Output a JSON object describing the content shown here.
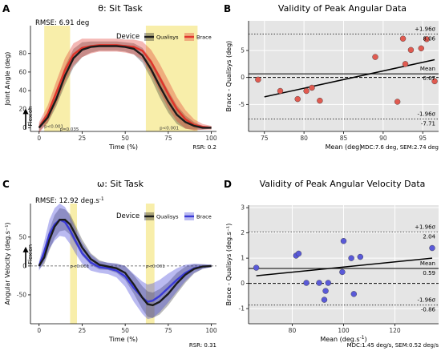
{
  "colors": {
    "qualisys": "#1a1a1a",
    "brace_red": "#e0342b",
    "brace_blue": "#3a3ad6",
    "highlight": "#f8eeaa",
    "panel_grey": "#e5e5e5",
    "point_red": "#e05a50",
    "point_blue": "#5a5ad8"
  },
  "chart_data": [
    {
      "type": "line",
      "panel_label": "A",
      "title": "θ: Sit Task",
      "annotation": "RMSE: 6.91 deg",
      "xlabel": "Time (%)",
      "ylabel": "Joint Angle (deg)",
      "arrow_label": "Flexion",
      "legend_title": "Device",
      "legend_position": "top-right",
      "footer": "RSR: 0.2",
      "xlim": [
        -5,
        103
      ],
      "ylim": [
        -4,
        110
      ],
      "xticks": [
        0,
        25,
        50,
        75,
        100
      ],
      "yticks": [
        0,
        20,
        40,
        60,
        80
      ],
      "grid": false,
      "highlight_regions": [
        [
          3,
          18
        ],
        [
          62,
          92
        ]
      ],
      "p_labels": [
        {
          "text": "p<0.001",
          "x": 3,
          "y": 0
        },
        {
          "text": "p=0.035",
          "x": 12,
          "y": -3
        },
        {
          "text": "p<0.001",
          "x": 70,
          "y": -2
        }
      ],
      "series": [
        {
          "name": "Qualisys",
          "x": [
            0,
            5,
            10,
            15,
            20,
            25,
            30,
            35,
            40,
            45,
            50,
            55,
            60,
            65,
            70,
            75,
            80,
            85,
            90,
            95,
            100
          ],
          "y": [
            0,
            11,
            31,
            56,
            75,
            84,
            87,
            88,
            88,
            88,
            87,
            85,
            78,
            63,
            45,
            28,
            14,
            6,
            2,
            0,
            0
          ],
          "band": [
            4,
            6,
            8,
            10,
            10,
            8,
            6,
            5,
            5,
            5,
            5,
            6,
            8,
            10,
            12,
            12,
            10,
            7,
            4,
            2,
            1
          ]
        },
        {
          "name": "Brace",
          "x": [
            0,
            5,
            10,
            15,
            20,
            25,
            30,
            35,
            40,
            45,
            50,
            55,
            60,
            65,
            70,
            75,
            80,
            85,
            90,
            95,
            100
          ],
          "y": [
            0,
            15,
            38,
            62,
            79,
            86,
            88,
            89,
            89,
            89,
            88,
            87,
            83,
            71,
            54,
            36,
            20,
            9,
            3,
            1,
            0
          ],
          "band": [
            6,
            9,
            12,
            13,
            12,
            10,
            8,
            7,
            7,
            7,
            7,
            8,
            10,
            13,
            15,
            15,
            13,
            10,
            6,
            3,
            2
          ]
        }
      ]
    },
    {
      "type": "scatter",
      "panel_label": "B",
      "title": "Validity of Peak Angular Data",
      "xlabel": "Mean (deg)",
      "ylabel": "Brace - Qualisys (deg)",
      "footer": "MDC:7.6 deg, SEM:2.74 deg",
      "xlim": [
        73,
        97
      ],
      "ylim": [
        -10,
        10.5
      ],
      "xticks": [
        75,
        80,
        85,
        90,
        95
      ],
      "yticks": [
        -5,
        0,
        5
      ],
      "grid": true,
      "mean": 0.67,
      "mean_label": "Mean",
      "mean_value_label": "0.67",
      "upper_loa": 8.06,
      "upper_loa_label": "+1.96σ",
      "upper_loa_value_label": "8.06",
      "lower_loa": -7.71,
      "lower_loa_label": "-1.96σ",
      "lower_loa_value_label": "-7.71",
      "regression": [
        [
          75,
          -3.6
        ],
        [
          96.5,
          3.3
        ]
      ],
      "points": [
        [
          74.2,
          -0.4
        ],
        [
          77,
          -2.5
        ],
        [
          79.2,
          -4.0
        ],
        [
          80.3,
          -2.5
        ],
        [
          81,
          -1.9
        ],
        [
          82,
          -4.3
        ],
        [
          89,
          3.8
        ],
        [
          91.8,
          -4.5
        ],
        [
          92.5,
          7.2
        ],
        [
          93.5,
          5.1
        ],
        [
          94.8,
          5.4
        ],
        [
          95.5,
          7.1
        ],
        [
          96.5,
          -0.7
        ],
        [
          92.8,
          2.5
        ]
      ]
    },
    {
      "type": "line",
      "panel_label": "C",
      "title": "ω: Sit Task",
      "annotation": "RMSE: 12.92 deg.s",
      "annotation_sup": "-1",
      "xlabel": "Time (%)",
      "ylabel": "Angular Velocity (deg.s⁻¹)",
      "arrow_label": "Flexion",
      "legend_title": "Device",
      "legend_position": "top-right",
      "footer": "RSR: 0.31",
      "xlim": [
        -5,
        103
      ],
      "ylim": [
        -100,
        108
      ],
      "xticks": [
        0,
        25,
        50,
        75,
        100
      ],
      "yticks": [
        -50,
        0,
        50
      ],
      "grid": false,
      "zero_line": true,
      "highlight_regions": [
        [
          18,
          22
        ],
        [
          62,
          67
        ]
      ],
      "p_labels": [
        {
          "text": "p<0.001",
          "x": 18,
          "y": -3
        },
        {
          "text": "p<0.001",
          "x": 62,
          "y": -3
        }
      ],
      "series": [
        {
          "name": "Qualisys",
          "x": [
            0,
            3,
            6,
            9,
            12,
            15,
            18,
            21,
            25,
            30,
            35,
            40,
            45,
            50,
            55,
            60,
            63,
            66,
            70,
            75,
            80,
            85,
            90,
            95,
            100
          ],
          "y": [
            0,
            15,
            45,
            68,
            80,
            80,
            72,
            55,
            32,
            12,
            2,
            -1,
            -4,
            -12,
            -32,
            -55,
            -66,
            -68,
            -62,
            -48,
            -30,
            -15,
            -5,
            -1,
            0
          ],
          "band": [
            5,
            12,
            18,
            20,
            20,
            18,
            18,
            16,
            14,
            10,
            8,
            6,
            8,
            12,
            16,
            20,
            22,
            22,
            22,
            20,
            18,
            14,
            8,
            4,
            2
          ]
        },
        {
          "name": "Brace",
          "x": [
            0,
            3,
            6,
            9,
            12,
            15,
            18,
            21,
            25,
            30,
            35,
            40,
            45,
            50,
            55,
            60,
            63,
            66,
            70,
            75,
            80,
            85,
            90,
            95,
            100
          ],
          "y": [
            0,
            25,
            55,
            72,
            80,
            76,
            62,
            44,
            22,
            6,
            -2,
            -4,
            -8,
            -18,
            -38,
            -55,
            -62,
            -60,
            -52,
            -38,
            -24,
            -12,
            -4,
            -1,
            0
          ],
          "band": [
            8,
            18,
            25,
            28,
            28,
            26,
            24,
            22,
            18,
            14,
            10,
            10,
            12,
            18,
            24,
            28,
            30,
            30,
            28,
            25,
            20,
            14,
            8,
            4,
            2
          ]
        }
      ]
    },
    {
      "type": "scatter",
      "panel_label": "D",
      "title": "Validity of Peak Angular Velocity Data",
      "xlabel": "Mean (deg.s",
      "xlabel_sup": "-1",
      "xlabel_end": ")",
      "ylabel": "Brace - Qualisys (deg.s⁻¹)",
      "footer": "MDC:1.45 deg/s, SEM:0.52 deg/s",
      "xlim": [
        63,
        137
      ],
      "ylim": [
        -1.6,
        3.1
      ],
      "xticks": [
        80,
        100,
        120
      ],
      "yticks": [
        -1,
        0,
        1,
        2,
        3
      ],
      "grid": true,
      "mean": 0.59,
      "mean_label": "Mean",
      "mean_value_label": "0.59",
      "upper_loa": 2.04,
      "upper_loa_label": "+1.96σ",
      "upper_loa_value_label": "2.04",
      "lower_loa": -0.86,
      "lower_loa_label": "-1.96σ",
      "lower_loa_value_label": "-0.86",
      "regression": [
        [
          66,
          0.3
        ],
        [
          134.5,
          1.0
        ]
      ],
      "points": [
        [
          66,
          0.62
        ],
        [
          81.5,
          1.1
        ],
        [
          82.5,
          1.18
        ],
        [
          85.5,
          0.02
        ],
        [
          90.5,
          0.02
        ],
        [
          92.5,
          -0.65
        ],
        [
          93,
          -0.3
        ],
        [
          94,
          0.02
        ],
        [
          99.5,
          0.45
        ],
        [
          100,
          1.68
        ],
        [
          103,
          1.0
        ],
        [
          104,
          -0.42
        ],
        [
          106.5,
          1.05
        ],
        [
          134.5,
          1.4
        ]
      ]
    }
  ]
}
